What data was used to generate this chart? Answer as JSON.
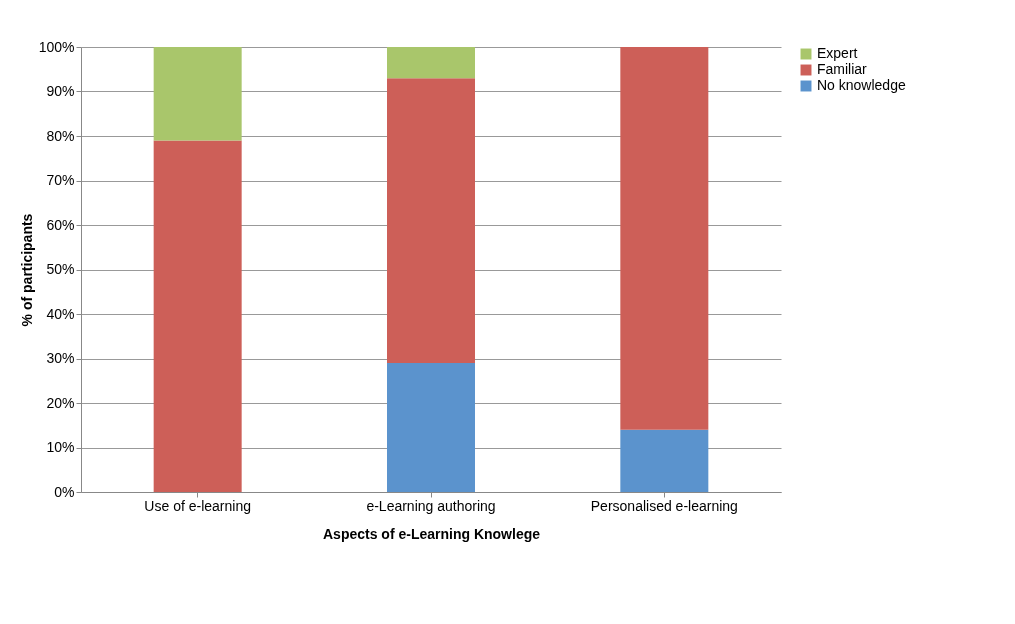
{
  "chart_data": {
    "type": "bar",
    "stacked": true,
    "xlabel": "Aspects of e-Learning Knowlege",
    "ylabel": "% of participants",
    "categories": [
      "Use of e-learning",
      "e-Learning authoring",
      "Personalised e-learning"
    ],
    "series": [
      {
        "name": "No knowledge",
        "color": "#5b93cd",
        "values": [
          0,
          29,
          14
        ]
      },
      {
        "name": "Familiar",
        "color": "#cd5f58",
        "values": [
          79,
          64,
          86
        ]
      },
      {
        "name": "Expert",
        "color": "#a9c66b",
        "values": [
          21,
          7,
          0
        ]
      }
    ],
    "ylim": [
      0,
      100
    ],
    "yticks": [
      {
        "value": 0,
        "label": "0%"
      },
      {
        "value": 10,
        "label": "10%"
      },
      {
        "value": 20,
        "label": "20%"
      },
      {
        "value": 30,
        "label": "30%"
      },
      {
        "value": 40,
        "label": "40%"
      },
      {
        "value": 50,
        "label": "50%"
      },
      {
        "value": 60,
        "label": "60%"
      },
      {
        "value": 70,
        "label": "70%"
      },
      {
        "value": 80,
        "label": "80%"
      },
      {
        "value": 90,
        "label": "90%"
      },
      {
        "value": 100,
        "label": "100%"
      }
    ],
    "grid": "y",
    "legend": "right"
  }
}
